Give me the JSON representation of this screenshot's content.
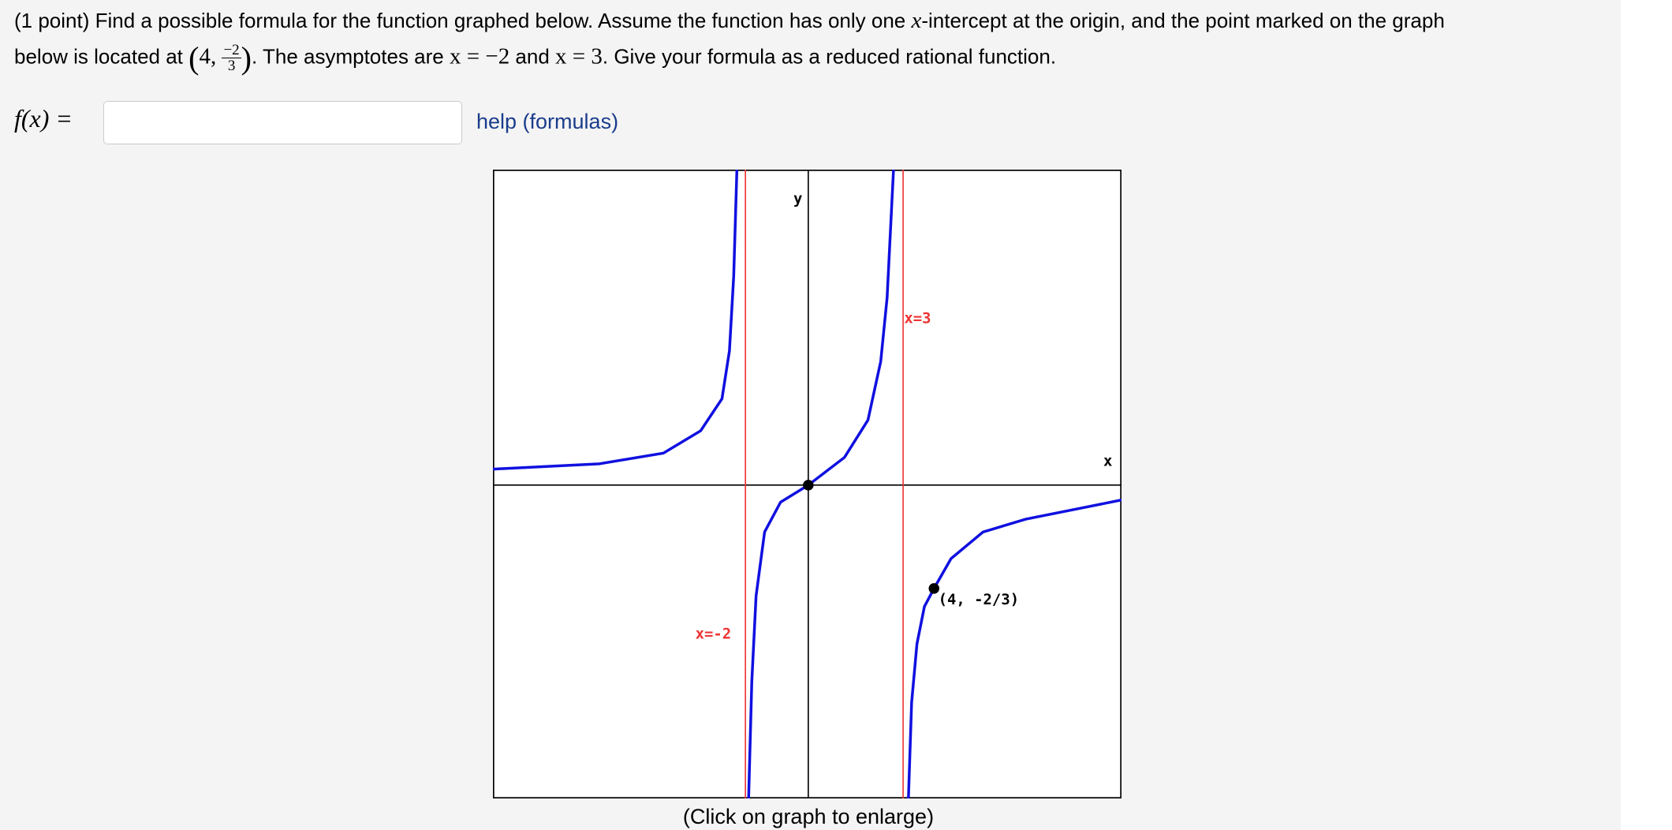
{
  "problem": {
    "points": "(1 point)",
    "line1": [
      "Find a possible formula for the function graphed below. Assume the function has only one ",
      "x",
      "-intercept at the origin, and the point marked on the graph"
    ],
    "line2": {
      "before": "below is located at ",
      "point_x": "4,",
      "frac_num": "−2",
      "frac_den": "3",
      "after_point": ". The asymptotes are ",
      "asym1": "x = −2",
      "and": " and ",
      "asym2": "x = 3",
      "end": ". Give your formula as a reduced rational function."
    },
    "answer_label": "f(x) =",
    "help_link": "help (formulas)",
    "graph": {
      "y_axis": "y",
      "x_axis": "x",
      "asym_right": "x=3",
      "asym_left": "x=-2",
      "point_label": "(4, -2/3)"
    },
    "caption": "(Click on graph to enlarge)"
  }
}
